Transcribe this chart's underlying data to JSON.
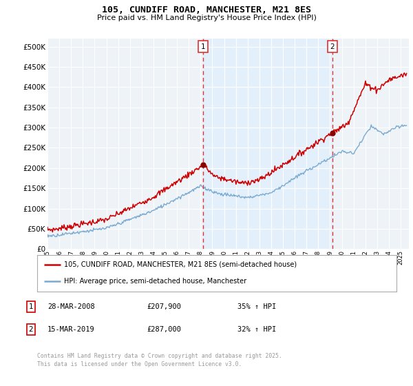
{
  "title": "105, CUNDIFF ROAD, MANCHESTER, M21 8ES",
  "subtitle": "Price paid vs. HM Land Registry's House Price Index (HPI)",
  "legend_line1": "105, CUNDIFF ROAD, MANCHESTER, M21 8ES (semi-detached house)",
  "legend_line2": "HPI: Average price, semi-detached house, Manchester",
  "annotation1_date": "28-MAR-2008",
  "annotation1_price": "£207,900",
  "annotation1_hpi": "35% ↑ HPI",
  "annotation1_year": 2008.23,
  "annotation1_value": 207900,
  "annotation2_date": "15-MAR-2019",
  "annotation2_price": "£287,000",
  "annotation2_hpi": "32% ↑ HPI",
  "annotation2_year": 2019.2,
  "annotation2_value": 287000,
  "line1_color": "#cc0000",
  "line2_color": "#7aaad0",
  "vline_color": "#dd3333",
  "shade_color": "#ddeeff",
  "background_color": "#ffffff",
  "plot_bg_color": "#eef3f8",
  "grid_color": "#ffffff",
  "ylim": [
    0,
    520000
  ],
  "yticks": [
    0,
    50000,
    100000,
    150000,
    200000,
    250000,
    300000,
    350000,
    400000,
    450000,
    500000
  ],
  "xlim_start": 1995,
  "xlim_end": 2025.7,
  "footer": "Contains HM Land Registry data © Crown copyright and database right 2025.\nThis data is licensed under the Open Government Licence v3.0.",
  "copyright_color": "#999999"
}
